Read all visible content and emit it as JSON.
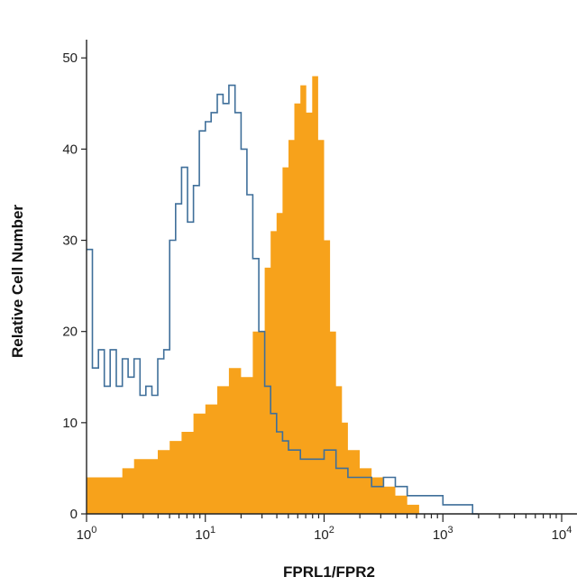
{
  "chart_data": {
    "type": "area",
    "title": "",
    "xlabel": "FPRL1/FPR2",
    "ylabel": "Relative Cell Number",
    "xscale": "log",
    "xlim": [
      1,
      10000
    ],
    "ylim": [
      0,
      52
    ],
    "grid": false,
    "legend": "none",
    "xticks": [
      {
        "value": 1,
        "base": "10",
        "exp": "0"
      },
      {
        "value": 10,
        "base": "10",
        "exp": "1"
      },
      {
        "value": 100,
        "base": "10",
        "exp": "2"
      },
      {
        "value": 1000,
        "base": "10",
        "exp": "3"
      },
      {
        "value": 10000,
        "base": "10",
        "exp": "4"
      }
    ],
    "yticks": [
      0,
      10,
      20,
      30,
      40,
      50
    ],
    "series": [
      {
        "style": "filled",
        "color": "#f7a21b",
        "x": [
          1.0,
          1.26,
          1.58,
          2.0,
          2.51,
          3.16,
          3.98,
          5.01,
          6.31,
          7.94,
          10.0,
          12.6,
          15.8,
          20.0,
          25.1,
          31.6,
          35.5,
          39.8,
          44.7,
          50.1,
          56.2,
          63.1,
          70.8,
          79.4,
          89.1,
          100.0,
          112.2,
          125.9,
          141.3,
          158.5,
          199.5,
          251.2,
          316.2,
          398.1,
          501.2,
          631.0,
          700.0
        ],
        "y": [
          4,
          4,
          4,
          5,
          6,
          6,
          7,
          8,
          9,
          11,
          12,
          14,
          16,
          15,
          20,
          27,
          31,
          33,
          38,
          41,
          45,
          47,
          44,
          48,
          41,
          30,
          20,
          14,
          10,
          7,
          5,
          4,
          3,
          2,
          1,
          0,
          0
        ]
      },
      {
        "style": "outline",
        "color": "#3f6f9a",
        "x": [
          1.0,
          1.12,
          1.26,
          1.41,
          1.58,
          1.78,
          2.0,
          2.24,
          2.51,
          2.82,
          3.16,
          3.55,
          3.98,
          4.47,
          5.01,
          5.62,
          6.31,
          7.08,
          7.94,
          8.91,
          10.0,
          11.2,
          12.6,
          14.1,
          15.8,
          17.8,
          20.0,
          22.4,
          25.1,
          28.2,
          31.6,
          35.5,
          39.8,
          44.7,
          50.1,
          63.1,
          79.4,
          100.0,
          125.9,
          158.5,
          199.5,
          251.2,
          316.2,
          398.1,
          501.2,
          631.0,
          794.3,
          1000.0,
          1258.9,
          1584.9,
          1778.0
        ],
        "y": [
          29,
          16,
          18,
          14,
          18,
          14,
          17,
          15,
          17,
          13,
          14,
          13,
          17,
          18,
          30,
          34,
          38,
          32,
          36,
          42,
          43,
          44,
          46,
          45,
          47,
          44,
          40,
          35,
          28,
          20,
          14,
          11,
          9,
          8,
          7,
          6,
          6,
          7,
          5,
          4,
          4,
          3,
          4,
          3,
          2,
          2,
          2,
          1,
          1,
          1,
          0
        ]
      }
    ]
  }
}
